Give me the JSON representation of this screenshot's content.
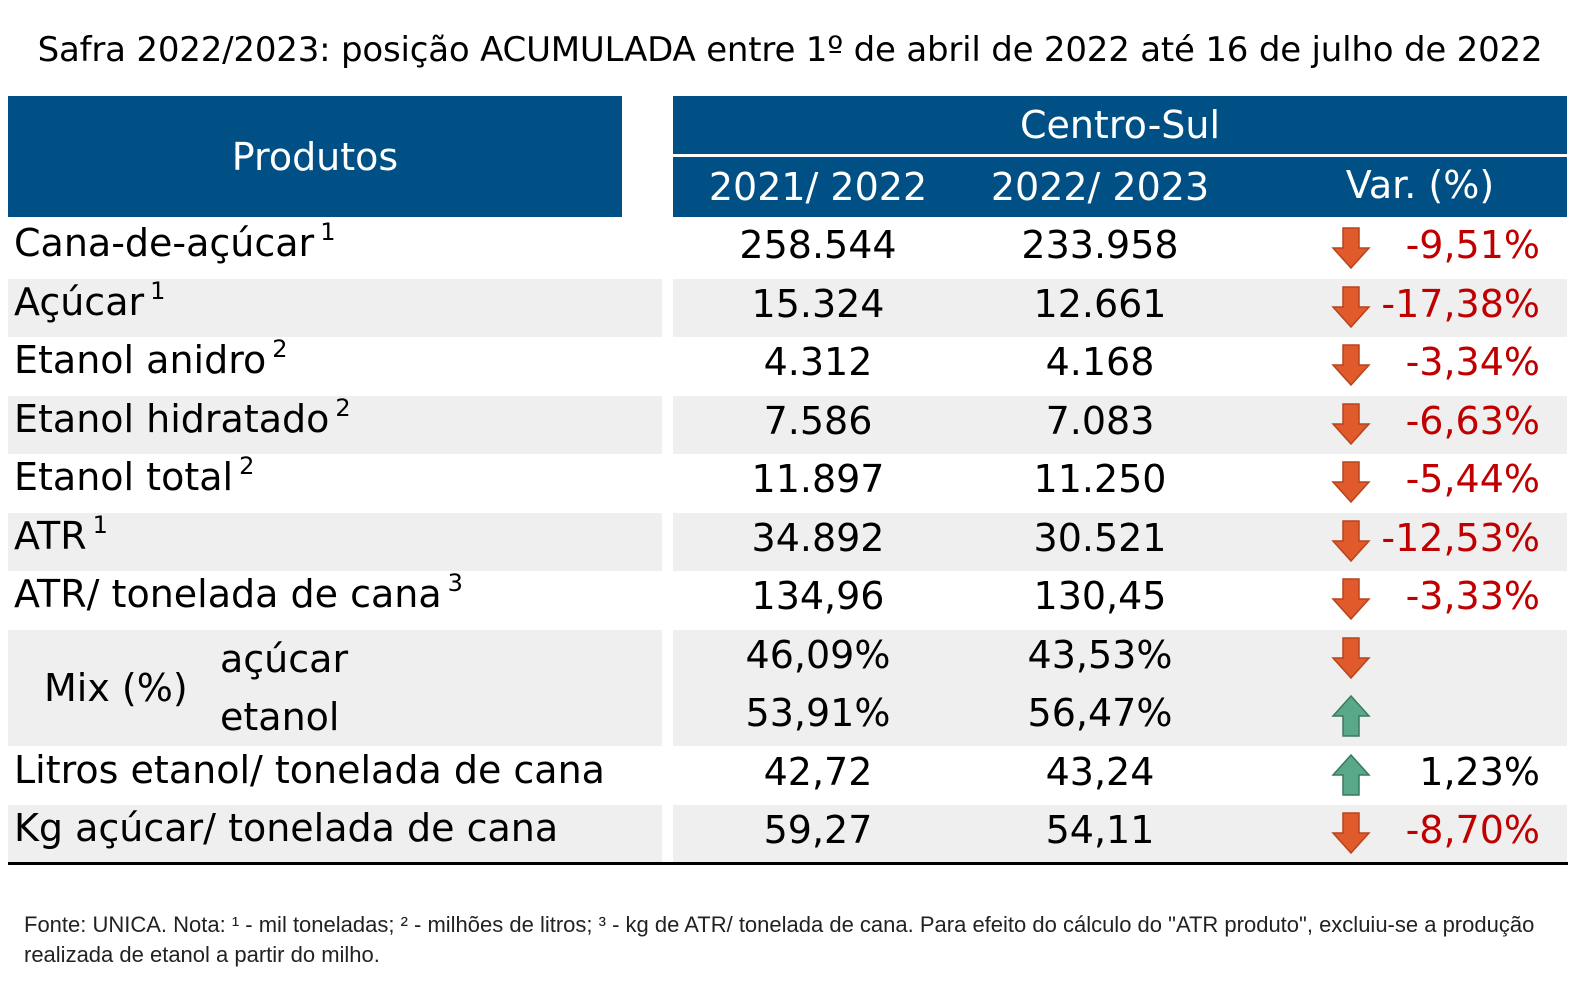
{
  "title": "Safra 2022/2023: posição ACUMULADA entre 1º de abril de 2022 até 16 de julho de 2022",
  "header": {
    "products": "Produtos",
    "region": "Centro-Sul",
    "col1": "2021/ 2022",
    "col2": "2022/ 2023",
    "col3": "Var. (%)"
  },
  "colors": {
    "header_bg": "#005086",
    "negative": "#c00000",
    "down_arrow": "#e05a2b",
    "up_arrow": "#5aa88a"
  },
  "chart_data": {
    "type": "table",
    "columns": [
      "Produtos",
      "2021/ 2022",
      "2022/ 2023",
      "Var. (%)"
    ],
    "rows": [
      {
        "label": "Cana-de-açúcar",
        "sup": "1",
        "v1": "258.544",
        "v2": "233.958",
        "direction": "down",
        "var": "-9,51%"
      },
      {
        "label": "Açúcar",
        "sup": "1",
        "v1": "15.324",
        "v2": "12.661",
        "direction": "down",
        "var": "-17,38%"
      },
      {
        "label": "Etanol anidro",
        "sup": "2",
        "v1": "4.312",
        "v2": "4.168",
        "direction": "down",
        "var": "-3,34%"
      },
      {
        "label": "Etanol hidratado",
        "sup": "2",
        "v1": "7.586",
        "v2": "7.083",
        "direction": "down",
        "var": "-6,63%"
      },
      {
        "label": "Etanol total",
        "sup": "2",
        "v1": "11.897",
        "v2": "11.250",
        "direction": "down",
        "var": "-5,44%"
      },
      {
        "label": "ATR",
        "sup": "1",
        "v1": "34.892",
        "v2": "30.521",
        "direction": "down",
        "var": "-12,53%"
      },
      {
        "label": "ATR/ tonelada de cana",
        "sup": "3",
        "v1": "134,96",
        "v2": "130,45",
        "direction": "down",
        "var": "-3,33%"
      },
      {
        "group": "Mix (%)",
        "label": "açúcar",
        "v1": "46,09%",
        "v2": "43,53%",
        "direction": "down",
        "var": ""
      },
      {
        "group": "Mix (%)",
        "label": "etanol",
        "v1": "53,91%",
        "v2": "56,47%",
        "direction": "up",
        "var": ""
      },
      {
        "label": "Litros etanol/ tonelada de cana",
        "sup": "",
        "v1": "42,72",
        "v2": "43,24",
        "direction": "up",
        "var": "1,23%"
      },
      {
        "label": "Kg açúcar/ tonelada de cana",
        "sup": "",
        "v1": "59,27",
        "v2": "54,11",
        "direction": "down",
        "var": "-8,70%"
      }
    ]
  },
  "mix_label": "Mix (%)",
  "note": "Fonte: UNICA. Nota: ¹ - mil toneladas; ² - milhões de litros; ³ - kg de ATR/ tonelada de cana. Para efeito do cálculo do \"ATR produto\", excluiu-se a produção realizada de etanol a partir do milho."
}
